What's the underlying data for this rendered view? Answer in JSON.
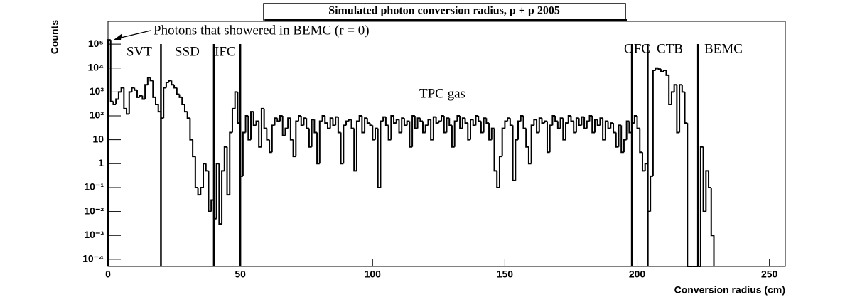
{
  "chart_data": {
    "type": "histogram",
    "title": "Simulated photon conversion radius, p + p 2005",
    "x_label": "Conversion radius (cm)",
    "y_label": "Counts",
    "log_y": true,
    "color": "#000000",
    "xlim": [
      0,
      256
    ],
    "ylim": [
      5e-05,
      900000
    ],
    "xticks": [
      0,
      50,
      100,
      150,
      200,
      250
    ],
    "yticks": [
      {
        "value": 0.0001,
        "label": "10⁻⁴"
      },
      {
        "value": 0.001,
        "label": "10⁻³"
      },
      {
        "value": 0.01,
        "label": "10⁻²"
      },
      {
        "value": 0.1,
        "label": "10⁻¹"
      },
      1,
      10,
      {
        "value": 100,
        "label": "10²"
      },
      {
        "value": 1000,
        "label": "10³"
      },
      {
        "value": 10000,
        "label": "10⁴"
      },
      {
        "value": 100000,
        "label": "10⁵"
      }
    ],
    "bins": [
      0,
      1,
      2,
      3,
      4,
      5,
      6,
      7,
      8,
      9,
      10,
      11,
      12,
      13,
      14,
      15,
      16,
      17,
      18,
      19,
      20,
      21,
      22,
      23,
      24,
      25,
      26,
      27,
      28,
      29,
      30,
      31,
      32,
      33,
      34,
      35,
      36,
      37,
      38,
      39,
      40,
      41,
      42,
      43,
      44,
      45,
      46,
      47,
      48,
      49,
      50,
      51,
      52,
      53,
      54,
      55,
      56,
      57,
      58,
      59,
      60,
      61,
      62,
      63,
      64,
      65,
      66,
      67,
      68,
      69,
      70,
      71,
      72,
      73,
      74,
      75,
      76,
      77,
      78,
      79,
      80,
      81,
      82,
      83,
      84,
      85,
      86,
      87,
      88,
      89,
      90,
      91,
      92,
      93,
      94,
      95,
      96,
      97,
      98,
      99,
      100,
      101,
      102,
      103,
      104,
      105,
      106,
      107,
      108,
      109,
      110,
      111,
      112,
      113,
      114,
      115,
      116,
      117,
      118,
      119,
      120,
      121,
      122,
      123,
      124,
      125,
      126,
      127,
      128,
      129,
      130,
      131,
      132,
      133,
      134,
      135,
      136,
      137,
      138,
      139,
      140,
      141,
      142,
      143,
      144,
      145,
      146,
      147,
      148,
      149,
      150,
      151,
      152,
      153,
      154,
      155,
      156,
      157,
      158,
      159,
      160,
      161,
      162,
      163,
      164,
      165,
      166,
      167,
      168,
      169,
      170,
      171,
      172,
      173,
      174,
      175,
      176,
      177,
      178,
      179,
      180,
      181,
      182,
      183,
      184,
      185,
      186,
      187,
      188,
      189,
      190,
      191,
      192,
      193,
      194,
      195,
      196,
      197,
      198,
      199,
      200,
      201,
      202,
      203,
      204,
      205,
      206,
      207,
      208,
      209,
      210,
      211,
      212,
      213,
      214,
      215,
      216,
      217,
      218,
      219,
      220,
      221,
      222,
      223,
      224,
      225,
      226,
      227,
      228,
      229
    ],
    "counts": [
      150000,
      400,
      300,
      500,
      1000,
      1500,
      200,
      120,
      1000,
      1500,
      1200,
      600,
      700,
      500,
      2000,
      4000,
      3000,
      600,
      300,
      150,
      80,
      1500,
      2500,
      3000,
      2000,
      1500,
      800,
      600,
      300,
      150,
      80,
      10,
      2,
      0.1,
      0.05,
      0.1,
      1,
      0.5,
      0.01,
      0.03,
      0.005,
      1,
      0.003,
      0.5,
      5,
      0.05,
      20,
      200,
      1000,
      50,
      0.3,
      20,
      100,
      10,
      150,
      40,
      60,
      5,
      200,
      30,
      10,
      3,
      40,
      80,
      60,
      100,
      15,
      30,
      80,
      10,
      2,
      60,
      100,
      40,
      80,
      30,
      5,
      70,
      20,
      1,
      60,
      100,
      50,
      30,
      80,
      40,
      90,
      20,
      1,
      40,
      60,
      70,
      30,
      0.5,
      60,
      100,
      20,
      80,
      50,
      40,
      10,
      30,
      0.1,
      60,
      90,
      40,
      10,
      100,
      50,
      70,
      20,
      80,
      40,
      60,
      5,
      100,
      30,
      80,
      60,
      20,
      40,
      70,
      10,
      90,
      50,
      60,
      100,
      20,
      80,
      40,
      5,
      60,
      100,
      30,
      80,
      50,
      10,
      70,
      40,
      100,
      60,
      20,
      80,
      50,
      10,
      30,
      0.5,
      0.1,
      2,
      30,
      60,
      80,
      40,
      0.2,
      10,
      60,
      100,
      30,
      5,
      1,
      40,
      70,
      20,
      80,
      50,
      60,
      3,
      40,
      100,
      60,
      30,
      80,
      10,
      50,
      100,
      60,
      20,
      80,
      40,
      90,
      30,
      60,
      100,
      20,
      70,
      40,
      80,
      10,
      60,
      30,
      50,
      20,
      5,
      40,
      3,
      10,
      60,
      20,
      50,
      100,
      30,
      3,
      0.5,
      1,
      0.01,
      0.3,
      8000,
      10000,
      9000,
      7000,
      8000,
      5000,
      300,
      1000,
      2000,
      20,
      2000,
      1000,
      50,
      0,
      0,
      0,
      0,
      0,
      5,
      0.01,
      0.5,
      0.1,
      0.001
    ],
    "boundary_lines": [
      20,
      40,
      50,
      198,
      204,
      223
    ],
    "annotations": [
      "Photons that showered in BEMC (r = 0)",
      "SVT",
      "SSD",
      "IFC",
      "OFC",
      "CTB",
      "BEMC",
      "TPC gas"
    ]
  }
}
